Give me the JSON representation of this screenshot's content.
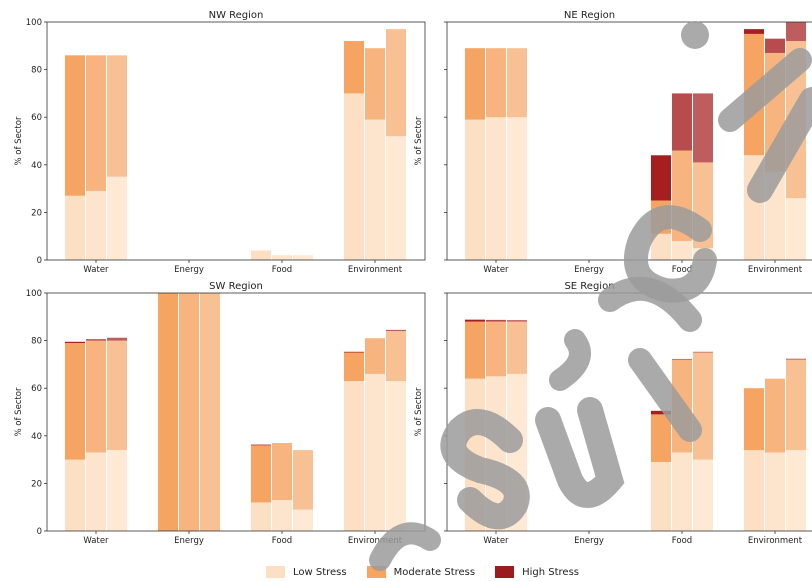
{
  "chart_data": {
    "type": "bar",
    "stacked": true,
    "ylabel": "% of Sector",
    "ylim": [
      0,
      100
    ],
    "yticks": [
      0,
      20,
      40,
      60,
      80,
      100
    ],
    "categories": [
      "Water",
      "Energy",
      "Food",
      "Environment"
    ],
    "bars_per_category": 3,
    "stack_order": [
      "Low Stress",
      "Moderate Stress",
      "High Stress"
    ],
    "colors": {
      "Low Stress": "#fddfc3",
      "Moderate Stress": "#f5a462",
      "High Stress": "#a51e20"
    },
    "legend": {
      "placement": "bottom-center",
      "entries": [
        {
          "label": "Low Stress",
          "color": "#fddfc3"
        },
        {
          "label": "Moderate Stress",
          "color": "#f5a462"
        },
        {
          "label": "High Stress",
          "color": "#9b1b1e"
        }
      ]
    },
    "panels": [
      {
        "title": "NW Region",
        "bars": {
          "Water": [
            [
              27,
              59,
              0
            ],
            [
              29,
              57,
              0
            ],
            [
              35,
              51,
              0
            ]
          ],
          "Energy": [
            [
              0,
              0,
              0
            ],
            [
              0,
              0,
              0
            ],
            [
              0,
              0,
              0
            ]
          ],
          "Food": [
            [
              4,
              0,
              0
            ],
            [
              2,
              0,
              0
            ],
            [
              2,
              0,
              0
            ]
          ],
          "Environment": [
            [
              70,
              22,
              0
            ],
            [
              59,
              30,
              0
            ],
            [
              52,
              45,
              0
            ]
          ]
        }
      },
      {
        "title": "NE Region",
        "bars": {
          "Water": [
            [
              59,
              30,
              0
            ],
            [
              60,
              29,
              0
            ],
            [
              60,
              29,
              0
            ]
          ],
          "Energy": [
            [
              0,
              0,
              0
            ],
            [
              0,
              0,
              0
            ],
            [
              0,
              0,
              0
            ]
          ],
          "Food": [
            [
              11,
              14,
              19
            ],
            [
              8,
              38,
              24
            ],
            [
              5,
              36,
              29
            ]
          ],
          "Environment": [
            [
              44,
              51,
              2
            ],
            [
              37,
              50,
              6
            ],
            [
              26,
              66,
              8
            ]
          ]
        }
      },
      {
        "title": "SW Region",
        "bars": {
          "Water": [
            [
              30,
              49,
              0.5
            ],
            [
              33,
              47,
              0.6
            ],
            [
              34,
              46,
              1.2
            ]
          ],
          "Energy": [
            [
              0,
              100,
              0
            ],
            [
              0,
              100,
              0
            ],
            [
              0,
              100,
              0
            ]
          ],
          "Food": [
            [
              12,
              24,
              0.3
            ],
            [
              13,
              24,
              0
            ],
            [
              9,
              25,
              0
            ]
          ],
          "Environment": [
            [
              63,
              12,
              0.3
            ],
            [
              66,
              15,
              0
            ],
            [
              63,
              21,
              0.5
            ]
          ]
        }
      },
      {
        "title": "SE Region",
        "bars": {
          "Water": [
            [
              64,
              24,
              0.8
            ],
            [
              65,
              23,
              0.7
            ],
            [
              66,
              22,
              0.6
            ]
          ],
          "Energy": [
            [
              0,
              0,
              0
            ],
            [
              0,
              0,
              0
            ],
            [
              0,
              0,
              0
            ]
          ],
          "Food": [
            [
              29,
              20,
              1.5
            ],
            [
              33,
              39,
              0.3
            ],
            [
              30,
              45,
              0.3
            ]
          ],
          "Environment": [
            [
              34,
              26,
              0
            ],
            [
              33,
              31,
              0
            ],
            [
              34,
              38,
              0.4
            ]
          ]
        }
      }
    ]
  }
}
